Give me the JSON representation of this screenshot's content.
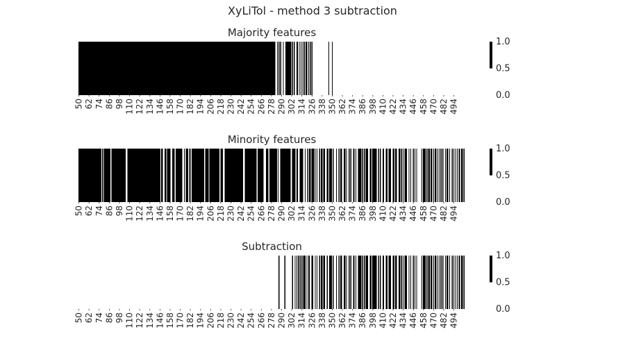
{
  "figure": {
    "title": "XyLiTol - method 3 subtraction"
  },
  "colors": {
    "on": "#000000",
    "off": "#ffffff",
    "text": "#262626"
  },
  "chart_data": [
    {
      "type": "heatmap",
      "title": "Majority features",
      "x_start": 50,
      "x_end": 508,
      "xticks": [
        50,
        62,
        74,
        86,
        98,
        110,
        122,
        134,
        146,
        158,
        170,
        182,
        194,
        206,
        218,
        230,
        242,
        254,
        266,
        278,
        290,
        302,
        314,
        326,
        338,
        350,
        362,
        374,
        386,
        398,
        410,
        422,
        434,
        446,
        458,
        470,
        482,
        494
      ],
      "colorbar": {
        "ticks": [
          "1.0",
          "0.5",
          "0.0"
        ],
        "vmin": 0,
        "vmax": 1
      },
      "on_ranges": [
        [
          50,
          283
        ],
        [
          285,
          286
        ],
        [
          287,
          288
        ],
        [
          289,
          290
        ],
        [
          292,
          293
        ],
        [
          295,
          302
        ],
        [
          303,
          304
        ],
        [
          305,
          306
        ],
        [
          308,
          310
        ],
        [
          311,
          312
        ],
        [
          313,
          314
        ],
        [
          315,
          316
        ],
        [
          317,
          318
        ],
        [
          319,
          320
        ],
        [
          320,
          321
        ],
        [
          322,
          323
        ],
        [
          324,
          325
        ],
        [
          326,
          327
        ],
        [
          346,
          347
        ],
        [
          350,
          351
        ]
      ]
    },
    {
      "type": "heatmap",
      "title": "Minority features",
      "x_start": 50,
      "x_end": 508,
      "xticks": [
        50,
        62,
        74,
        86,
        98,
        110,
        122,
        134,
        146,
        158,
        170,
        182,
        194,
        206,
        218,
        230,
        242,
        254,
        266,
        278,
        290,
        302,
        314,
        326,
        338,
        350,
        362,
        374,
        386,
        398,
        410,
        422,
        434,
        446,
        458,
        470,
        482,
        494
      ],
      "colorbar": {
        "ticks": [
          "1.0",
          "0.5",
          "0.0"
        ],
        "vmin": 0,
        "vmax": 1
      },
      "on_ranges": [
        [
          50,
          77
        ],
        [
          78,
          79
        ],
        [
          80,
          88
        ],
        [
          89,
          106
        ],
        [
          108,
          147
        ],
        [
          148,
          150
        ],
        [
          152,
          154
        ],
        [
          155,
          159
        ],
        [
          161,
          164
        ],
        [
          165,
          173
        ],
        [
          175,
          176
        ],
        [
          177,
          180
        ],
        [
          181,
          183
        ],
        [
          184,
          199
        ],
        [
          200,
          204
        ],
        [
          205,
          217
        ],
        [
          218,
          221
        ],
        [
          223,
          245
        ],
        [
          247,
          261
        ],
        [
          262,
          269
        ],
        [
          272,
          275
        ],
        [
          276,
          285
        ],
        [
          286,
          287
        ],
        [
          289,
          301
        ],
        [
          303,
          307
        ],
        [
          308,
          310
        ],
        [
          312,
          316
        ],
        [
          318,
          319
        ],
        [
          321,
          322
        ],
        [
          323,
          325
        ],
        [
          326,
          329
        ],
        [
          330,
          331
        ],
        [
          332,
          333
        ],
        [
          335,
          336
        ],
        [
          337,
          339
        ],
        [
          340,
          342
        ],
        [
          344,
          346
        ],
        [
          347,
          350
        ],
        [
          351,
          352
        ],
        [
          355,
          356
        ],
        [
          358,
          359
        ],
        [
          360,
          362
        ],
        [
          364,
          366
        ],
        [
          367,
          368
        ],
        [
          370,
          371
        ],
        [
          372,
          373
        ],
        [
          375,
          377
        ],
        [
          378,
          379
        ],
        [
          381,
          385
        ],
        [
          386,
          387
        ],
        [
          388,
          389
        ],
        [
          390,
          393
        ],
        [
          395,
          397
        ],
        [
          398,
          403
        ],
        [
          405,
          406
        ],
        [
          407,
          408
        ],
        [
          410,
          412
        ],
        [
          414,
          416
        ],
        [
          417,
          420
        ],
        [
          422,
          424
        ],
        [
          425,
          427
        ],
        [
          429,
          431
        ],
        [
          432,
          433
        ],
        [
          434,
          435
        ],
        [
          436,
          439
        ],
        [
          441,
          442
        ],
        [
          443,
          444
        ],
        [
          446,
          447
        ],
        [
          448,
          449
        ],
        [
          450,
          451
        ],
        [
          456,
          457
        ],
        [
          458,
          461
        ],
        [
          462,
          463
        ],
        [
          464,
          466
        ],
        [
          467,
          469
        ],
        [
          470,
          471
        ],
        [
          472,
          474
        ],
        [
          475,
          476
        ],
        [
          477,
          478
        ],
        [
          479,
          480
        ],
        [
          481,
          482
        ],
        [
          484,
          485
        ],
        [
          486,
          488
        ],
        [
          489,
          490
        ],
        [
          492,
          493
        ],
        [
          494,
          495
        ],
        [
          496,
          497
        ],
        [
          498,
          499
        ],
        [
          500,
          502
        ],
        [
          503,
          505
        ],
        [
          506,
          507
        ]
      ]
    },
    {
      "type": "heatmap",
      "title": "Subtraction",
      "x_start": 50,
      "x_end": 508,
      "xticks": [
        50,
        62,
        74,
        86,
        98,
        110,
        122,
        134,
        146,
        158,
        170,
        182,
        194,
        206,
        218,
        230,
        242,
        254,
        266,
        278,
        290,
        302,
        314,
        326,
        338,
        350,
        362,
        374,
        386,
        398,
        410,
        422,
        434,
        446,
        458,
        470,
        482,
        494
      ],
      "colorbar": {
        "ticks": [
          "1.0",
          "0.5",
          "0.0"
        ],
        "vmin": 0,
        "vmax": 1
      },
      "on_ranges": [
        [
          287,
          288
        ],
        [
          294,
          295
        ],
        [
          303,
          304
        ],
        [
          306,
          307
        ],
        [
          308,
          309
        ],
        [
          310,
          311
        ],
        [
          312,
          313
        ],
        [
          314,
          315
        ],
        [
          316,
          319
        ],
        [
          320,
          321
        ],
        [
          322,
          324
        ],
        [
          326,
          327
        ],
        [
          327,
          328
        ],
        [
          330,
          331
        ],
        [
          332,
          333
        ],
        [
          335,
          336
        ],
        [
          337,
          339
        ],
        [
          340,
          342
        ],
        [
          344,
          345
        ],
        [
          347,
          348
        ],
        [
          348,
          350
        ],
        [
          351,
          352
        ],
        [
          355,
          356
        ],
        [
          358,
          359
        ],
        [
          360,
          362
        ],
        [
          364,
          366
        ],
        [
          367,
          368
        ],
        [
          370,
          371
        ],
        [
          372,
          373
        ],
        [
          375,
          377
        ],
        [
          378,
          379
        ],
        [
          381,
          385
        ],
        [
          386,
          387
        ],
        [
          388,
          389
        ],
        [
          390,
          393
        ],
        [
          395,
          397
        ],
        [
          398,
          403
        ],
        [
          405,
          406
        ],
        [
          407,
          408
        ],
        [
          410,
          412
        ],
        [
          414,
          416
        ],
        [
          417,
          420
        ],
        [
          422,
          424
        ],
        [
          425,
          427
        ],
        [
          429,
          431
        ],
        [
          432,
          433
        ],
        [
          434,
          435
        ],
        [
          436,
          439
        ],
        [
          441,
          442
        ],
        [
          443,
          444
        ],
        [
          446,
          447
        ],
        [
          448,
          449
        ],
        [
          450,
          451
        ],
        [
          456,
          457
        ],
        [
          458,
          461
        ],
        [
          462,
          463
        ],
        [
          464,
          466
        ],
        [
          467,
          469
        ],
        [
          470,
          471
        ],
        [
          472,
          474
        ],
        [
          475,
          476
        ],
        [
          477,
          478
        ],
        [
          479,
          480
        ],
        [
          481,
          482
        ],
        [
          484,
          485
        ],
        [
          486,
          488
        ],
        [
          489,
          490
        ],
        [
          492,
          493
        ],
        [
          494,
          495
        ],
        [
          496,
          497
        ],
        [
          498,
          499
        ],
        [
          500,
          502
        ],
        [
          503,
          505
        ],
        [
          506,
          507
        ]
      ]
    }
  ]
}
